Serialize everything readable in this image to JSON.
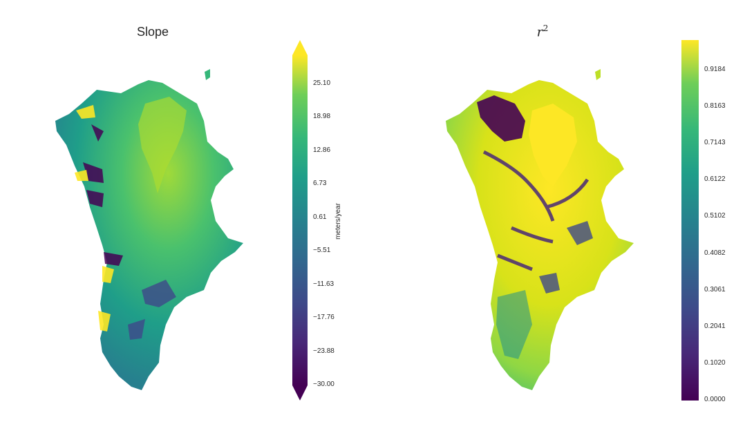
{
  "chart_data": [
    {
      "type": "heatmap",
      "title": "Slope",
      "colormap": "viridis",
      "colorbar": {
        "label": "meters/year",
        "ticks": [
          "25.10",
          "18.98",
          "12.86",
          "6.73",
          "0.61",
          "−5.51",
          "−11.63",
          "−17.76",
          "−23.88",
          "−30.00"
        ],
        "range": [
          -30.0,
          31.22
        ],
        "extend": "both"
      }
    },
    {
      "type": "heatmap",
      "title_base": "r",
      "title_superscript": "2",
      "colormap": "viridis",
      "colorbar": {
        "label": "",
        "ticks": [
          "0.9184",
          "0.8163",
          "0.7143",
          "0.6122",
          "0.5102",
          "0.4082",
          "0.3061",
          "0.2041",
          "0.1020",
          "0.0000"
        ],
        "range": [
          0.0,
          1.0
        ],
        "extend": "neither"
      }
    }
  ],
  "colors": {
    "viridis_dark": "#440154",
    "viridis_blue": "#31688e",
    "viridis_teal": "#21918c",
    "viridis_green": "#5ec962",
    "viridis_yellow": "#fde725"
  }
}
